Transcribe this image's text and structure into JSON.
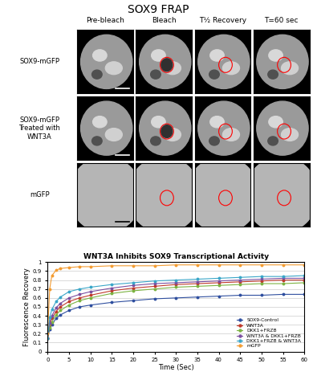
{
  "title": "SOX9 FRAP",
  "image_panels": {
    "columns": [
      "Pre-bleach",
      "Bleach",
      "T½ Recovery",
      "T=60 sec"
    ],
    "rows": [
      "SOX9-mGFP",
      "SOX9-mGFP\nTreated with\nWNT3A",
      "mGFP"
    ]
  },
  "chart_data": {
    "type": "line",
    "title": "WNT3A Inhibits SOX9 Transcriptional Activity",
    "x_label": "Time (Sec)",
    "y_label": "Fluorescence Recovery",
    "x": [
      0,
      0.5,
      1,
      2,
      3,
      5,
      7.5,
      10,
      15,
      20,
      25,
      30,
      35,
      40,
      45,
      50,
      55,
      60
    ],
    "series": [
      {
        "name": "SOX9-Control",
        "color": "#2f4f9f",
        "marker": "o",
        "line_style": "solid",
        "values": [
          0.15,
          0.25,
          0.3,
          0.37,
          0.41,
          0.46,
          0.5,
          0.52,
          0.55,
          0.57,
          0.59,
          0.6,
          0.61,
          0.62,
          0.63,
          0.63,
          0.64,
          0.64
        ]
      },
      {
        "name": "WNT3A",
        "color": "#c0392b",
        "marker": "o",
        "line_style": "solid",
        "values": [
          0.15,
          0.3,
          0.37,
          0.45,
          0.5,
          0.56,
          0.6,
          0.63,
          0.68,
          0.71,
          0.73,
          0.75,
          0.76,
          0.77,
          0.78,
          0.79,
          0.8,
          0.8
        ]
      },
      {
        "name": "DKK1+FRZB",
        "color": "#7cb342",
        "marker": "o",
        "line_style": "solid",
        "values": [
          0.15,
          0.27,
          0.33,
          0.41,
          0.46,
          0.52,
          0.57,
          0.6,
          0.65,
          0.68,
          0.7,
          0.72,
          0.73,
          0.74,
          0.75,
          0.76,
          0.76,
          0.77
        ]
      },
      {
        "name": "WNT3A & DKK1+FRZB",
        "color": "#7b4fa0",
        "marker": "o",
        "line_style": "solid",
        "values": [
          0.15,
          0.32,
          0.4,
          0.49,
          0.54,
          0.6,
          0.64,
          0.67,
          0.71,
          0.74,
          0.76,
          0.77,
          0.78,
          0.79,
          0.8,
          0.81,
          0.82,
          0.82
        ]
      },
      {
        "name": "DKK1+FRZB & WNT3A",
        "color": "#3aa6c8",
        "marker": "o",
        "line_style": "solid",
        "values": [
          0.15,
          0.38,
          0.47,
          0.56,
          0.61,
          0.67,
          0.7,
          0.72,
          0.75,
          0.77,
          0.79,
          0.8,
          0.81,
          0.82,
          0.83,
          0.84,
          0.84,
          0.85
        ]
      },
      {
        "name": "mGFP",
        "color": "#f39c32",
        "marker": "o",
        "line_style": "solid",
        "values": [
          0.2,
          0.7,
          0.85,
          0.91,
          0.93,
          0.94,
          0.95,
          0.95,
          0.96,
          0.96,
          0.96,
          0.97,
          0.97,
          0.97,
          0.97,
          0.97,
          0.97,
          0.97
        ]
      }
    ],
    "xlim": [
      0,
      60
    ],
    "xticks": [
      0,
      5,
      10,
      15,
      20,
      25,
      30,
      35,
      40,
      45,
      50,
      55,
      60
    ],
    "ylim": [
      0,
      1
    ],
    "yticks": [
      0,
      0.1,
      0.2,
      0.3,
      0.4,
      0.5,
      0.6,
      0.7,
      0.8,
      0.9,
      1
    ],
    "grid": true,
    "legend": "lower right"
  }
}
